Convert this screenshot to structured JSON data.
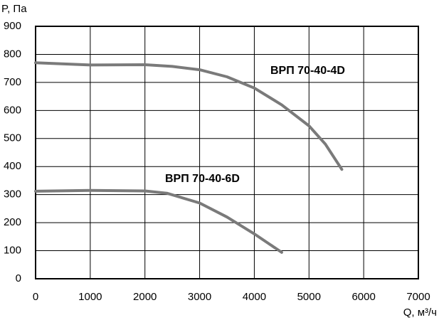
{
  "chart_data": {
    "type": "line",
    "y_label": "P, Па",
    "x_label": "Q, м³/ч",
    "xlim": [
      0,
      7000
    ],
    "xticks": [
      0,
      1000,
      2000,
      3000,
      4000,
      5000,
      6000,
      7000
    ],
    "ylim": [
      0,
      900
    ],
    "yticks": [
      0,
      100,
      200,
      300,
      400,
      500,
      600,
      700,
      800,
      900
    ],
    "grid": true,
    "series": [
      {
        "name": "ВРП 70-40-4D",
        "color": "#7a7a7a",
        "x": [
          0,
          1000,
          2000,
          2500,
          3000,
          3500,
          4000,
          4500,
          5000,
          5300,
          5600
        ],
        "values": [
          770,
          762,
          763,
          757,
          745,
          720,
          680,
          620,
          545,
          480,
          390
        ]
      },
      {
        "name": "ВРП 70-40-6D",
        "color": "#7a7a7a",
        "x": [
          0,
          1000,
          2000,
          2400,
          3000,
          3500,
          4000,
          4500
        ],
        "values": [
          312,
          315,
          313,
          305,
          270,
          220,
          160,
          94
        ]
      }
    ]
  }
}
